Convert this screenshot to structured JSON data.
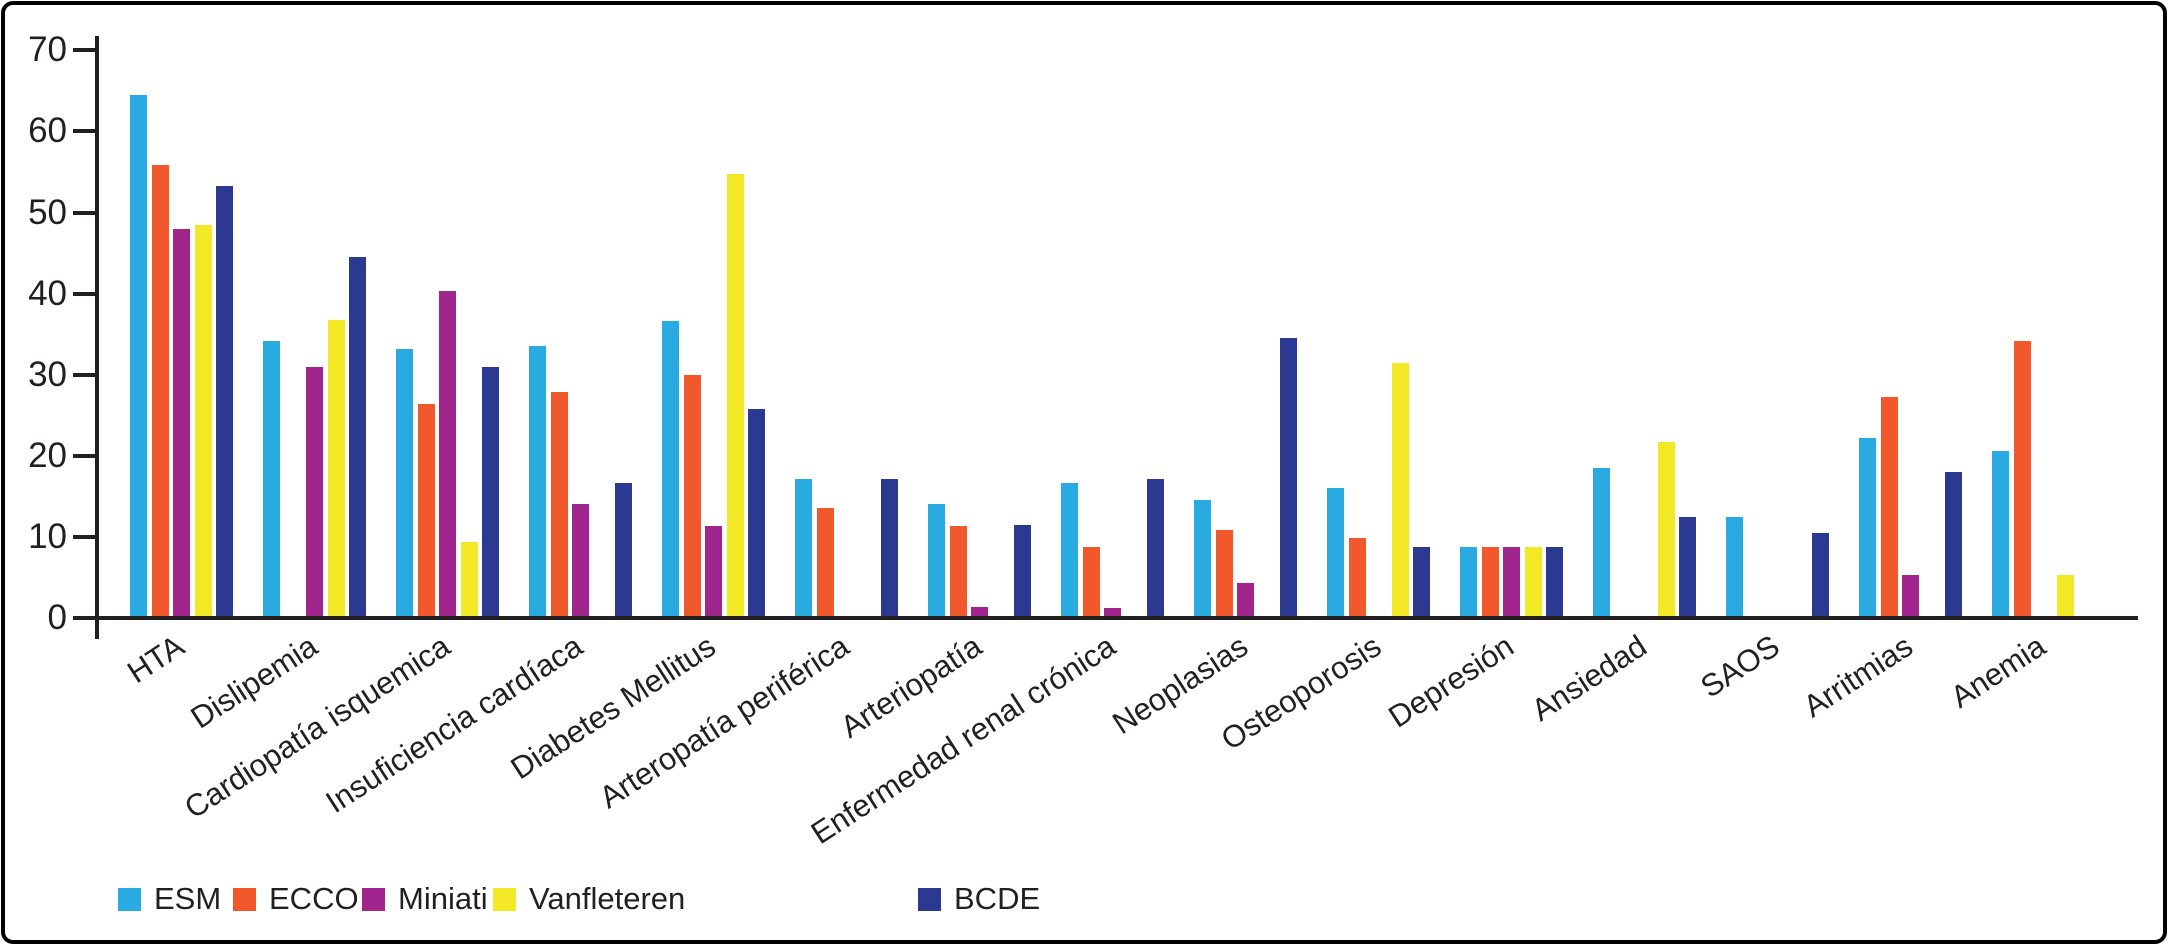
{
  "chart_data": {
    "type": "bar",
    "title": "",
    "xlabel": "",
    "ylabel": "",
    "ylim": [
      0,
      70
    ],
    "yticks": [
      0,
      10,
      20,
      30,
      40,
      50,
      60,
      70
    ],
    "grid": false,
    "legend_position": "bottom-left",
    "axis_color": "#231F20",
    "categories": [
      "HTA",
      "Dislipemia",
      "Cardiopatía isquemica",
      "Insuficiencia cardíaca",
      "Diabetes Mellitus",
      "Arteropatía periférica",
      "Arteriopatía",
      "Enfermedad renal crónica",
      "Neoplasias",
      "Osteoporosis",
      "Depresión",
      "Ansiedad",
      "SAOS",
      "Arritmias",
      "Anemia"
    ],
    "series": [
      {
        "name": "ESM",
        "color": "#29ABE2",
        "values": [
          64.5,
          34.2,
          33.2,
          33.5,
          36.6,
          17.1,
          14.0,
          16.6,
          14.6,
          16.0,
          8.8,
          18.5,
          12.5,
          22.2,
          20.6
        ]
      },
      {
        "name": "ECCO",
        "color": "#F1582B",
        "values": [
          55.8,
          0.3,
          26.4,
          27.9,
          30.0,
          13.6,
          11.4,
          8.8,
          10.9,
          9.9,
          8.8,
          0,
          0,
          27.3,
          34.1
        ]
      },
      {
        "name": "Miniati",
        "color": "#A0258C",
        "values": [
          48.0,
          31.0,
          40.3,
          14.0,
          11.4,
          0,
          1.3,
          1.2,
          4.3,
          0,
          8.8,
          0,
          0,
          5.3,
          0
        ]
      },
      {
        "name": "Vanfleteren",
        "color": "#F3E825",
        "values": [
          48.5,
          36.7,
          9.4,
          0,
          54.7,
          0,
          0,
          0,
          0,
          31.4,
          8.8,
          21.7,
          0,
          0,
          5.3
        ]
      },
      {
        "name": "BCDE",
        "color": "#2B3990",
        "values": [
          53.3,
          44.5,
          31.0,
          16.6,
          25.8,
          17.1,
          11.5,
          17.1,
          34.5,
          8.8,
          8.8,
          12.5,
          10.5,
          18.0,
          0
        ]
      }
    ]
  }
}
